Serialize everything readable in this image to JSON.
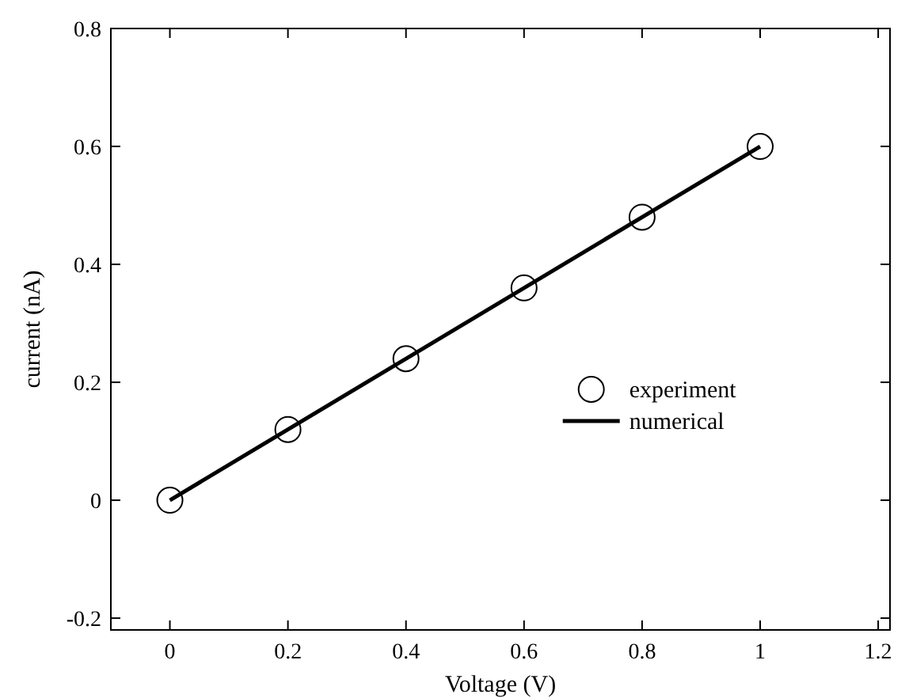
{
  "chart_data": {
    "type": "line",
    "xlabel": "Voltage (V)",
    "ylabel": "current (nA)",
    "xlim": [
      -0.1,
      1.22
    ],
    "xticks": [
      0,
      0.2,
      0.4,
      0.6,
      0.8,
      1,
      1.2
    ],
    "ylim": [
      -0.22,
      0.8
    ],
    "yticks": [
      -0.2,
      0,
      0.2,
      0.4,
      0.6,
      0.8
    ],
    "grid": false,
    "legend": "right",
    "series": [
      {
        "name": "experiment",
        "type": "scatter",
        "marker": "circle",
        "color": "#000000",
        "x": [
          0,
          0.2,
          0.4,
          0.6,
          0.8,
          1
        ],
        "values": [
          0,
          0.12,
          0.24,
          0.36,
          0.48,
          0.6
        ]
      },
      {
        "name": "numerical",
        "marker": "none",
        "line_style": "solid",
        "color": "#000000",
        "x": [
          0,
          1
        ],
        "values": [
          0,
          0.6
        ]
      }
    ]
  }
}
